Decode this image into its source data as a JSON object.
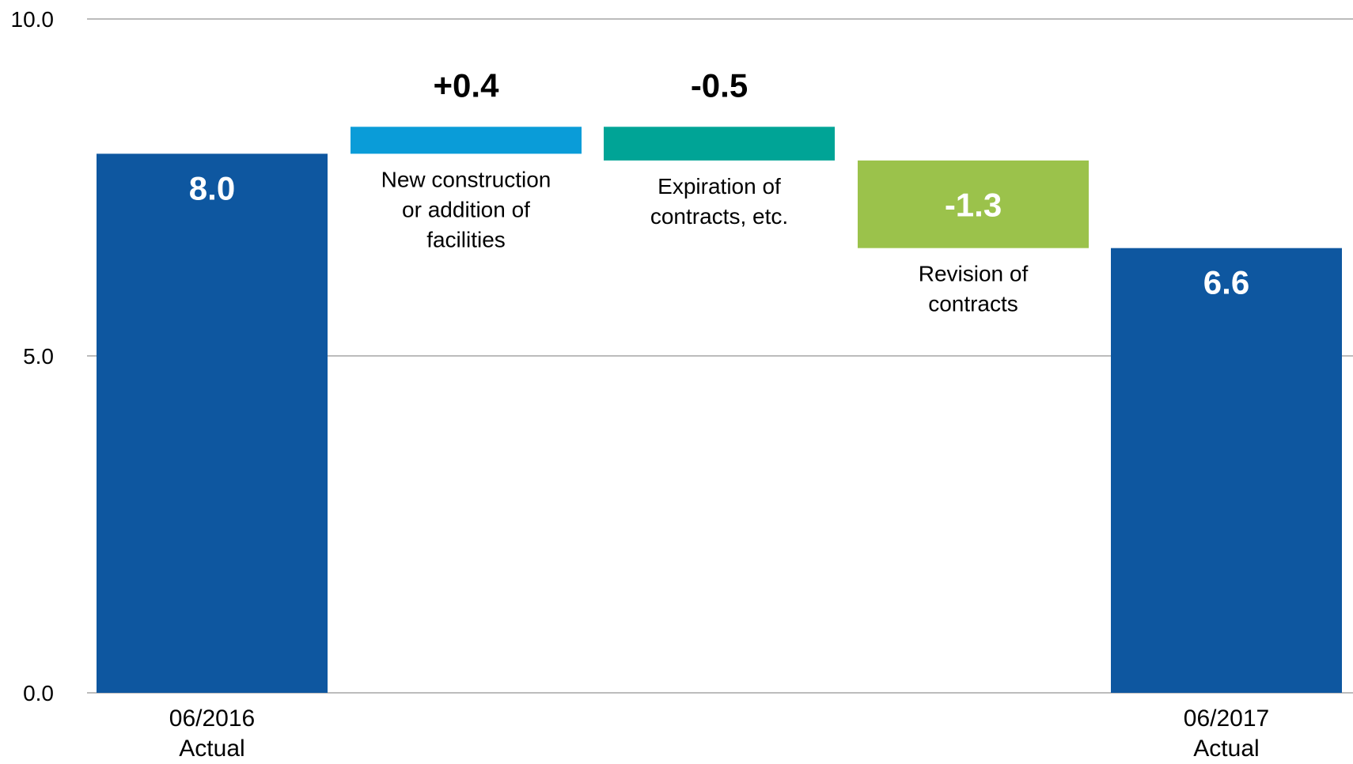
{
  "chart_data": {
    "type": "waterfall",
    "yticks": [
      "10.0",
      "5.0",
      "0.0"
    ],
    "ylim": [
      0,
      10
    ],
    "grid": true,
    "steps": [
      {
        "kind": "total",
        "label": [
          "06/2016",
          "Actual"
        ],
        "value": 8.0,
        "display": "8.0",
        "color": "#0E57A0",
        "label_color": "#FFFFFF"
      },
      {
        "kind": "delta",
        "note": [
          "New construction",
          "or addition of",
          "facilities"
        ],
        "value": 0.4,
        "display": "+0.4",
        "color": "#0A9CD8",
        "label_color": "#000000"
      },
      {
        "kind": "delta",
        "note": [
          "Expiration of",
          "contracts, etc."
        ],
        "value": -0.5,
        "display": "-0.5",
        "color": "#00A496",
        "label_color": "#000000"
      },
      {
        "kind": "delta",
        "note": [
          "Revision of",
          "contracts"
        ],
        "value": -1.3,
        "display": "-1.3",
        "color": "#9BC24B",
        "label_color": "#FFFFFF"
      },
      {
        "kind": "total",
        "label": [
          "06/2017",
          "Actual"
        ],
        "value": 6.6,
        "display": "6.6",
        "color": "#0E57A0",
        "label_color": "#FFFFFF"
      }
    ]
  }
}
